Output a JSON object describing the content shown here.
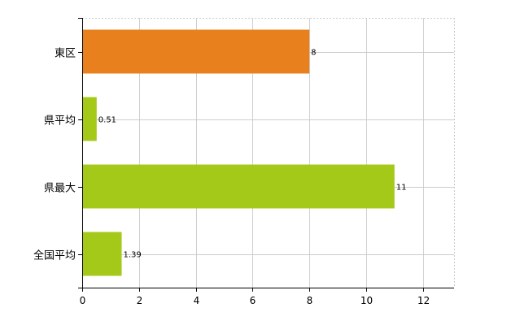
{
  "chart_data": {
    "type": "bar",
    "orientation": "horizontal",
    "categories": [
      "東区",
      "県平均",
      "県最大",
      "全国平均"
    ],
    "values": [
      8,
      0.51,
      11,
      1.39
    ],
    "value_labels": [
      "8",
      "0.51",
      "11",
      "1.39"
    ],
    "bar_colors": [
      "#E8801E",
      "#A4C918",
      "#A4C918",
      "#A4C918"
    ],
    "xlim": [
      0,
      13.1
    ],
    "xticks": [
      0,
      2,
      4,
      6,
      8,
      10,
      12
    ],
    "grid": true,
    "legend": "none",
    "title": "",
    "xlabel": "",
    "ylabel": ""
  }
}
